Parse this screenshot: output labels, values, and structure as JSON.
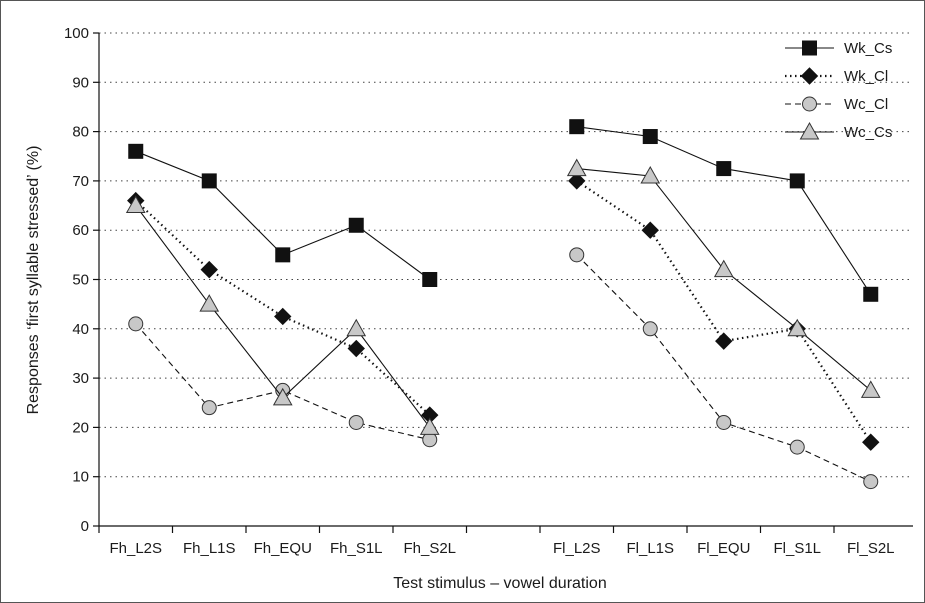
{
  "chart_data": {
    "type": "line",
    "title": "",
    "xlabel": "Test stimulus – vowel duration",
    "ylabel": "Responses ‘first syllable stressed’ (%)",
    "ylim": [
      0,
      100
    ],
    "yticks": [
      0,
      10,
      20,
      30,
      40,
      50,
      60,
      70,
      80,
      90,
      100
    ],
    "grid": "horizontal-dotted",
    "legend_position": "top-right",
    "groups": [
      {
        "categories": [
          "Fh_L2S",
          "Fh_L1S",
          "Fh_EQU",
          "Fh_S1L",
          "Fh_S2L"
        ]
      },
      {
        "categories": [
          "Fl_L2S",
          "Fl_L1S",
          "Fl_EQU",
          "Fl_S1L",
          "Fl_S2L"
        ]
      }
    ],
    "series": [
      {
        "name": "Wk_Cs",
        "marker": "square",
        "line": "solid",
        "color": "#111111",
        "values": [
          [
            76,
            70,
            55,
            61,
            50
          ],
          [
            81,
            79,
            72.5,
            70,
            47
          ]
        ]
      },
      {
        "name": "Wk_Cl",
        "marker": "diamond",
        "line": "dotted",
        "color": "#111111",
        "values": [
          [
            66,
            52,
            42.5,
            36,
            22.5
          ],
          [
            70,
            60,
            37.5,
            40,
            17
          ]
        ]
      },
      {
        "name": "Wc_Cl",
        "marker": "circle",
        "line": "dashed",
        "color": "#c8c8c8",
        "values": [
          [
            41,
            24,
            27.5,
            21,
            17.5
          ],
          [
            55,
            40,
            21,
            16,
            9
          ]
        ]
      },
      {
        "name": "Wc_Cs",
        "marker": "triangle",
        "line": "solid",
        "color": "#c8c8c8",
        "values": [
          [
            65,
            45,
            26,
            40,
            20
          ],
          [
            72.5,
            71,
            52,
            40,
            27.5
          ]
        ]
      }
    ]
  }
}
